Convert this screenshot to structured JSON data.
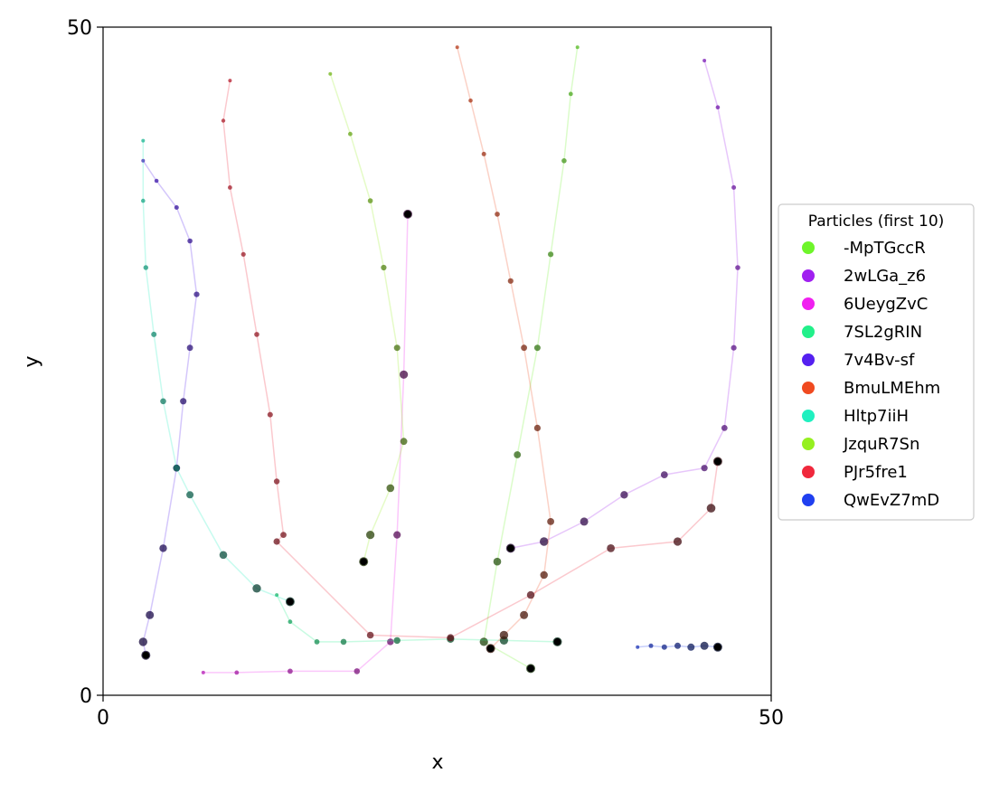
{
  "chart_data": {
    "type": "scatter",
    "title": "",
    "xlabel": "x",
    "ylabel": "y",
    "xlim": [
      0,
      50
    ],
    "ylim": [
      0,
      50
    ],
    "x_ticks": [
      "0",
      "50"
    ],
    "y_ticks": [
      "0",
      "50"
    ],
    "grid": false,
    "legend_placement": "center-right, outside plot",
    "legend_title": "Particles (first 10)",
    "series": [
      {
        "name": "-MpTGccR",
        "color": "#6ef52a",
        "x": [
          35.5,
          35.0,
          34.5,
          33.5,
          32.5,
          31.0,
          29.5,
          28.5,
          32.0
        ],
        "y": [
          48.5,
          45.0,
          40.0,
          33.0,
          26.0,
          18.0,
          10.0,
          4.0,
          2.0
        ]
      },
      {
        "name": "2wLGa_z6",
        "color": "#a020f0",
        "x": [
          45.0,
          46.0,
          47.2,
          47.5,
          47.2,
          46.5,
          45.0,
          42.0,
          39.0,
          36.0,
          33.0,
          30.5
        ],
        "y": [
          47.5,
          44.0,
          38.0,
          32.0,
          26.0,
          20.0,
          17.0,
          16.5,
          15.0,
          13.0,
          11.5,
          11.0
        ]
      },
      {
        "name": "6UeygZvC",
        "color": "#f020f0",
        "x": [
          7.5,
          10.0,
          14.0,
          19.0,
          21.5,
          22.0,
          22.5,
          22.8
        ],
        "y": [
          1.7,
          1.7,
          1.8,
          1.8,
          4.0,
          12.0,
          24.0,
          36.0
        ]
      },
      {
        "name": "7SL2gRIN",
        "color": "#22f08a",
        "x": [
          13.0,
          14.0,
          16.0,
          18.0,
          22.0,
          26.0,
          30.0,
          34.0
        ],
        "y": [
          7.5,
          5.5,
          4.0,
          4.0,
          4.1,
          4.2,
          4.1,
          4.0
        ]
      },
      {
        "name": "7v4Bv-sf",
        "color": "#5520f0",
        "x": [
          3.0,
          4.0,
          5.5,
          6.5,
          7.0,
          6.5,
          6.0,
          5.5,
          4.5,
          3.5,
          3.0,
          3.2
        ],
        "y": [
          40.0,
          38.5,
          36.5,
          34.0,
          30.0,
          26.0,
          22.0,
          17.0,
          11.0,
          6.0,
          4.0,
          3.0
        ]
      },
      {
        "name": "BmuLMEhm",
        "color": "#f04a20",
        "x": [
          26.5,
          27.5,
          28.5,
          29.5,
          30.5,
          31.5,
          32.5,
          33.5,
          33.0,
          31.5,
          30.0,
          29.0
        ],
        "y": [
          48.5,
          44.5,
          40.5,
          36.0,
          31.0,
          26.0,
          20.0,
          13.0,
          9.0,
          6.0,
          4.5,
          3.5
        ]
      },
      {
        "name": "Hltp7iiH",
        "color": "#20f0c0",
        "x": [
          3.0,
          3.0,
          3.2,
          3.8,
          4.5,
          5.5,
          6.5,
          9.0,
          11.5,
          14.0
        ],
        "y": [
          41.5,
          37.0,
          32.0,
          27.0,
          22.0,
          17.0,
          15.0,
          10.5,
          8.0,
          7.0
        ]
      },
      {
        "name": "JzquR7Sn",
        "color": "#96f020",
        "x": [
          17.0,
          18.5,
          20.0,
          21.0,
          22.0,
          22.5,
          21.5,
          20.0,
          19.5
        ],
        "y": [
          46.5,
          42.0,
          37.0,
          32.0,
          26.0,
          19.0,
          15.5,
          12.0,
          10.0
        ]
      },
      {
        "name": "PJr5fre1",
        "color": "#f0283c",
        "x": [
          9.5,
          9.0,
          9.5,
          10.5,
          11.5,
          12.5,
          13.0,
          13.5,
          13.0,
          20.0,
          26.0,
          32.0,
          38.0,
          43.0,
          45.5,
          46.0
        ],
        "y": [
          46.0,
          43.0,
          38.0,
          33.0,
          27.0,
          21.0,
          16.0,
          12.0,
          11.5,
          4.5,
          4.3,
          7.5,
          11.0,
          11.5,
          14.0,
          17.5
        ]
      },
      {
        "name": "QwEvZ7mD",
        "color": "#2040f0",
        "x": [
          40.0,
          41.0,
          42.0,
          43.0,
          44.0,
          45.0,
          46.0
        ],
        "y": [
          3.6,
          3.7,
          3.6,
          3.7,
          3.6,
          3.7,
          3.6
        ]
      }
    ],
    "extra_points_note": ""
  }
}
